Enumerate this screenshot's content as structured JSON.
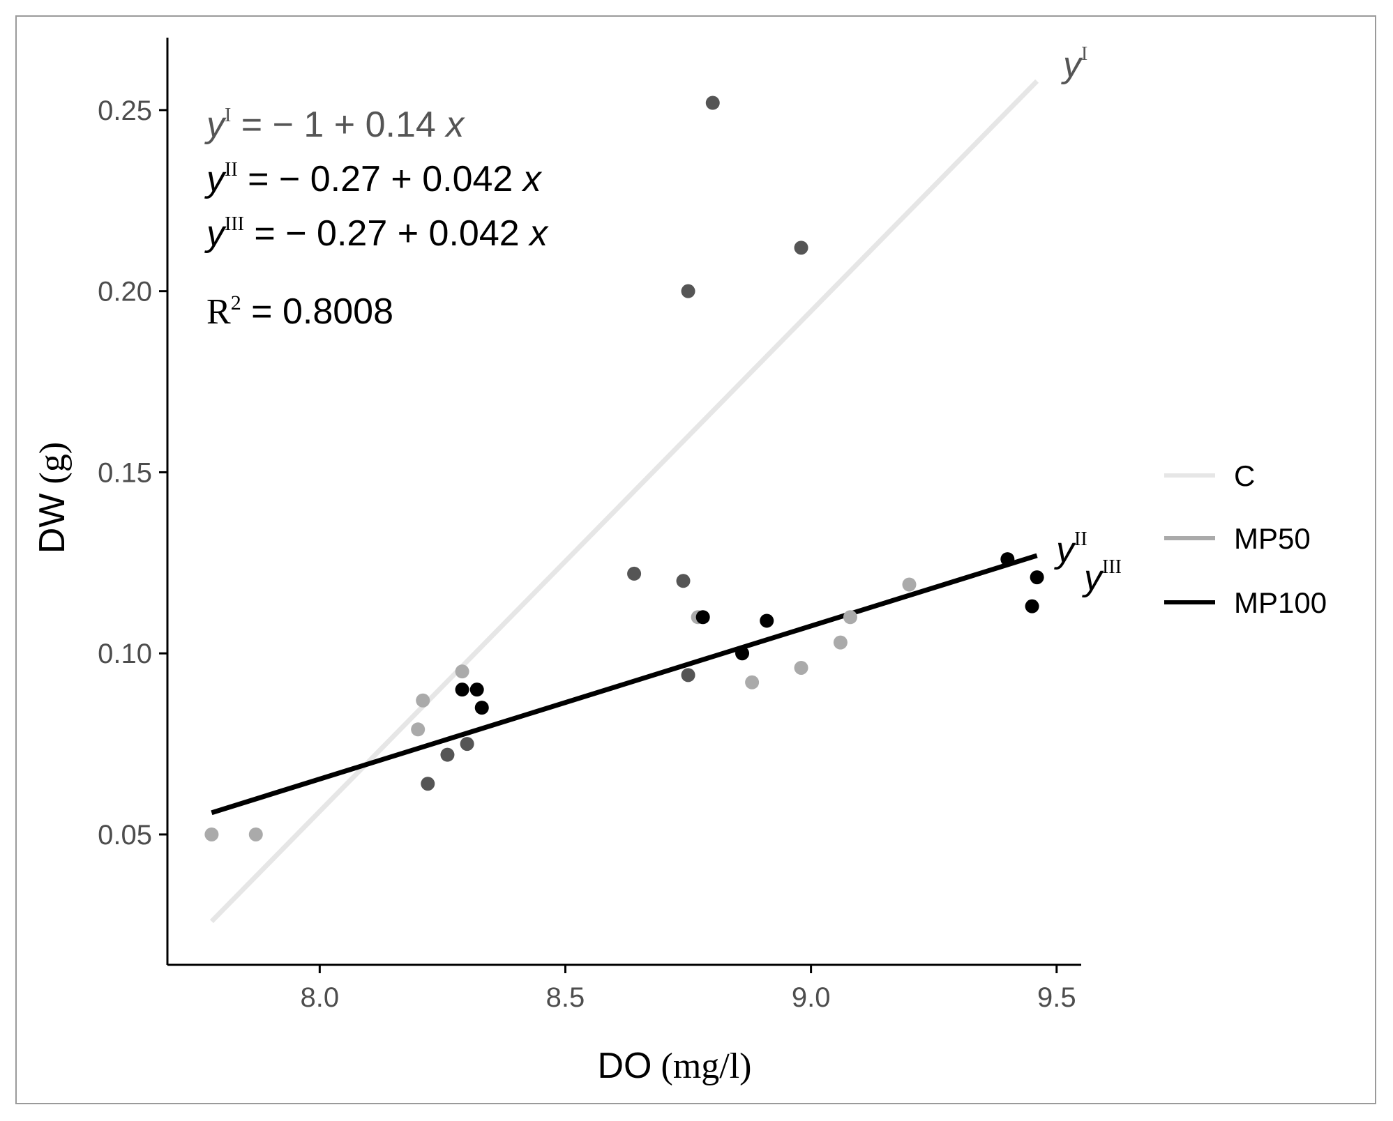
{
  "chart_data": {
    "type": "scatter",
    "title": "",
    "xlabel": "DO (mg/l)",
    "xlabel_parts": {
      "main": "DO",
      "unit": "(mg/l)"
    },
    "ylabel": "DW (g)",
    "ylabel_parts": {
      "main": "DW",
      "unit": "(g)"
    },
    "xlim": [
      7.69,
      9.55
    ],
    "ylim": [
      0.014,
      0.27
    ],
    "xticks": [
      8.0,
      8.5,
      9.0,
      9.5
    ],
    "xtick_labels": [
      "8.0",
      "8.5",
      "9.0",
      "9.5"
    ],
    "yticks": [
      0.05,
      0.1,
      0.15,
      0.2,
      0.25
    ],
    "ytick_labels": [
      "0.05",
      "0.10",
      "0.15",
      "0.20",
      "0.25"
    ],
    "grid": false,
    "legend_position": "right",
    "series": [
      {
        "name": "C",
        "color": "#e6e6e6",
        "point_color": "#555555",
        "line": {
          "x": [
            7.78,
            9.46
          ],
          "y": [
            0.026,
            0.258
          ]
        },
        "points": [
          [
            8.22,
            0.064
          ],
          [
            8.26,
            0.072
          ],
          [
            8.3,
            0.075
          ],
          [
            8.64,
            0.122
          ],
          [
            8.74,
            0.12
          ],
          [
            8.75,
            0.094
          ],
          [
            8.75,
            0.2
          ],
          [
            8.8,
            0.252
          ],
          [
            8.98,
            0.212
          ]
        ]
      },
      {
        "name": "MP50",
        "color": "#aaaaaa",
        "point_color": "#aaaaaa",
        "line": null,
        "points": [
          [
            7.78,
            0.05
          ],
          [
            7.87,
            0.05
          ],
          [
            8.2,
            0.079
          ],
          [
            8.21,
            0.087
          ],
          [
            8.29,
            0.095
          ],
          [
            8.77,
            0.11
          ],
          [
            8.88,
            0.092
          ],
          [
            8.98,
            0.096
          ],
          [
            9.06,
            0.103
          ],
          [
            9.08,
            0.11
          ],
          [
            9.2,
            0.119
          ]
        ]
      },
      {
        "name": "MP100",
        "color": "#000000",
        "point_color": "#000000",
        "line": {
          "x": [
            7.78,
            9.46
          ],
          "y": [
            0.056,
            0.127
          ]
        },
        "points": [
          [
            8.29,
            0.09
          ],
          [
            8.32,
            0.09
          ],
          [
            8.33,
            0.085
          ],
          [
            8.78,
            0.11
          ],
          [
            8.86,
            0.1
          ],
          [
            8.91,
            0.109
          ],
          [
            9.4,
            0.126
          ],
          [
            9.45,
            0.113
          ],
          [
            9.46,
            0.121
          ]
        ]
      }
    ],
    "annotations": {
      "line_label_I": {
        "y": "y",
        "sup": "I"
      },
      "line_label_II": {
        "y": "y",
        "sup": "II"
      },
      "line_label_III": {
        "y": "y",
        "sup": "III"
      },
      "equations": [
        {
          "y": "y",
          "sup": "I",
          "rhs": " = − 1 + 0.14 ",
          "x": "x",
          "color": "#555555"
        },
        {
          "y": "y",
          "sup": "II",
          "rhs": " = − 0.27 + 0.042 ",
          "x": "x",
          "color": "#000000"
        },
        {
          "y": "y",
          "sup": "III",
          "rhs": " = − 0.27 + 0.042 ",
          "x": "x",
          "color": "#000000"
        }
      ],
      "r2": {
        "label": "R",
        "sup": "2",
        "eq": " = ",
        "value": "0.8008"
      }
    }
  }
}
